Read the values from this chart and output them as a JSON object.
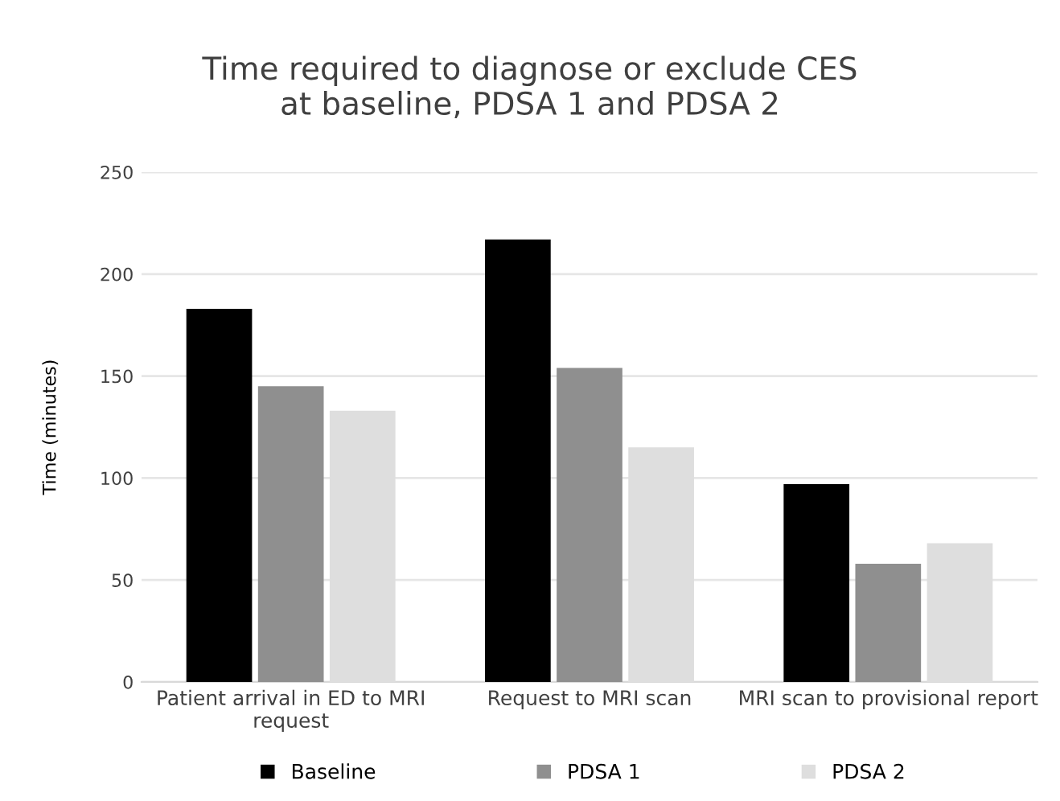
{
  "chart_data": {
    "type": "bar",
    "title": "Time required to diagnose or exclude CES\nat baseline, PDSA 1 and PDSA 2",
    "ylabel": "Time (minutes)",
    "categories": [
      "Patient arrival in ED to MRI\nrequest",
      "Request to MRI scan",
      "MRI scan to provisional report"
    ],
    "series": [
      {
        "name": "Baseline",
        "color": "#000000",
        "values": [
          183,
          217,
          97
        ]
      },
      {
        "name": "PDSA 1",
        "color": "#8f8f8f",
        "values": [
          145,
          154,
          58
        ]
      },
      {
        "name": "PDSA 2",
        "color": "#dedede",
        "values": [
          133,
          115,
          68
        ]
      }
    ],
    "ylim": [
      0,
      250
    ],
    "yticks": [
      0,
      50,
      100,
      150,
      200,
      250
    ],
    "grid": "y",
    "legend": "bottom"
  }
}
